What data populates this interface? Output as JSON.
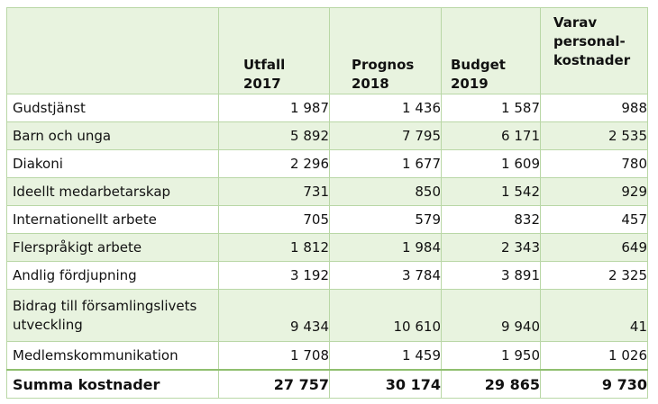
{
  "table": {
    "headers": [
      "",
      "Utfall\n2017",
      "Prognos\n2018",
      "Budget\n2019",
      "Varav\npersonal-\nkostnader"
    ],
    "rows": [
      {
        "label": "Gudstjänst",
        "values": [
          "1 987",
          "1 436",
          "1 587",
          "988"
        ]
      },
      {
        "label": "Barn och unga",
        "values": [
          "5 892",
          "7 795",
          "6 171",
          "2 535"
        ]
      },
      {
        "label": "Diakoni",
        "values": [
          "2 296",
          "1 677",
          "1 609",
          "780"
        ]
      },
      {
        "label": "Ideellt medarbetarskap",
        "values": [
          "731",
          "850",
          "1 542",
          "929"
        ]
      },
      {
        "label": "Internationellt arbete",
        "values": [
          "705",
          "579",
          "832",
          "457"
        ]
      },
      {
        "label": "Flerspråkigt arbete",
        "values": [
          "1 812",
          "1 984",
          "2 343",
          "649"
        ]
      },
      {
        "label": "Andlig fördjupning",
        "values": [
          "3 192",
          "3 784",
          "3 891",
          "2 325"
        ]
      },
      {
        "label": "Bidrag till församlingslivets\nutveckling",
        "values": [
          "9 434",
          "10 610",
          "9 940",
          "41"
        ]
      },
      {
        "label": "Medlemskommunikation",
        "values": [
          "1 708",
          "1 459",
          "1 950",
          "1 026"
        ]
      }
    ],
    "total": {
      "label": "Summa kostnader",
      "values": [
        "27 757",
        "30 174",
        "29 865",
        "9 730"
      ]
    }
  }
}
